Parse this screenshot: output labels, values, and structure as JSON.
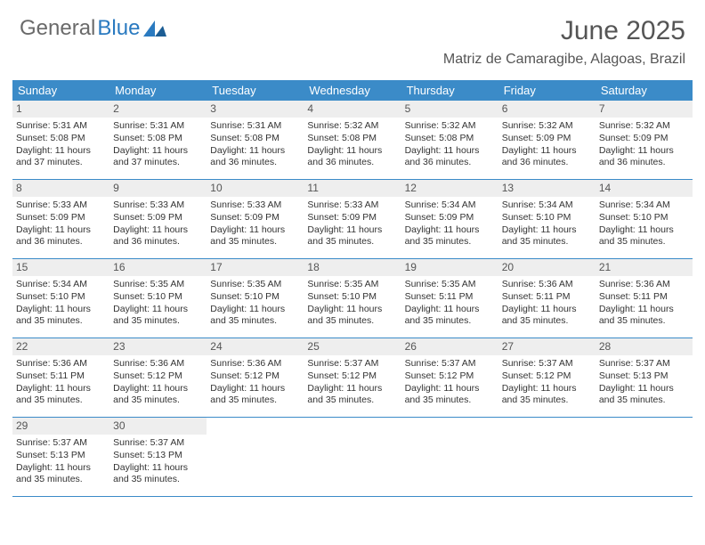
{
  "logo": {
    "text1": "General",
    "text2": "Blue"
  },
  "title": "June 2025",
  "location": "Matriz de Camaragibe, Alagoas, Brazil",
  "colors": {
    "header_bg": "#3b8bc8",
    "header_text": "#ffffff",
    "daynum_bg": "#eeeeee",
    "border": "#3b8bc8",
    "logo_gray": "#6a6a6a",
    "logo_blue": "#2a7ac0",
    "title_color": "#555555"
  },
  "day_names": [
    "Sunday",
    "Monday",
    "Tuesday",
    "Wednesday",
    "Thursday",
    "Friday",
    "Saturday"
  ],
  "weeks": [
    [
      {
        "n": "1",
        "sr": "Sunrise: 5:31 AM",
        "ss": "Sunset: 5:08 PM",
        "dl": "Daylight: 11 hours and 37 minutes."
      },
      {
        "n": "2",
        "sr": "Sunrise: 5:31 AM",
        "ss": "Sunset: 5:08 PM",
        "dl": "Daylight: 11 hours and 37 minutes."
      },
      {
        "n": "3",
        "sr": "Sunrise: 5:31 AM",
        "ss": "Sunset: 5:08 PM",
        "dl": "Daylight: 11 hours and 36 minutes."
      },
      {
        "n": "4",
        "sr": "Sunrise: 5:32 AM",
        "ss": "Sunset: 5:08 PM",
        "dl": "Daylight: 11 hours and 36 minutes."
      },
      {
        "n": "5",
        "sr": "Sunrise: 5:32 AM",
        "ss": "Sunset: 5:08 PM",
        "dl": "Daylight: 11 hours and 36 minutes."
      },
      {
        "n": "6",
        "sr": "Sunrise: 5:32 AM",
        "ss": "Sunset: 5:09 PM",
        "dl": "Daylight: 11 hours and 36 minutes."
      },
      {
        "n": "7",
        "sr": "Sunrise: 5:32 AM",
        "ss": "Sunset: 5:09 PM",
        "dl": "Daylight: 11 hours and 36 minutes."
      }
    ],
    [
      {
        "n": "8",
        "sr": "Sunrise: 5:33 AM",
        "ss": "Sunset: 5:09 PM",
        "dl": "Daylight: 11 hours and 36 minutes."
      },
      {
        "n": "9",
        "sr": "Sunrise: 5:33 AM",
        "ss": "Sunset: 5:09 PM",
        "dl": "Daylight: 11 hours and 36 minutes."
      },
      {
        "n": "10",
        "sr": "Sunrise: 5:33 AM",
        "ss": "Sunset: 5:09 PM",
        "dl": "Daylight: 11 hours and 35 minutes."
      },
      {
        "n": "11",
        "sr": "Sunrise: 5:33 AM",
        "ss": "Sunset: 5:09 PM",
        "dl": "Daylight: 11 hours and 35 minutes."
      },
      {
        "n": "12",
        "sr": "Sunrise: 5:34 AM",
        "ss": "Sunset: 5:09 PM",
        "dl": "Daylight: 11 hours and 35 minutes."
      },
      {
        "n": "13",
        "sr": "Sunrise: 5:34 AM",
        "ss": "Sunset: 5:10 PM",
        "dl": "Daylight: 11 hours and 35 minutes."
      },
      {
        "n": "14",
        "sr": "Sunrise: 5:34 AM",
        "ss": "Sunset: 5:10 PM",
        "dl": "Daylight: 11 hours and 35 minutes."
      }
    ],
    [
      {
        "n": "15",
        "sr": "Sunrise: 5:34 AM",
        "ss": "Sunset: 5:10 PM",
        "dl": "Daylight: 11 hours and 35 minutes."
      },
      {
        "n": "16",
        "sr": "Sunrise: 5:35 AM",
        "ss": "Sunset: 5:10 PM",
        "dl": "Daylight: 11 hours and 35 minutes."
      },
      {
        "n": "17",
        "sr": "Sunrise: 5:35 AM",
        "ss": "Sunset: 5:10 PM",
        "dl": "Daylight: 11 hours and 35 minutes."
      },
      {
        "n": "18",
        "sr": "Sunrise: 5:35 AM",
        "ss": "Sunset: 5:10 PM",
        "dl": "Daylight: 11 hours and 35 minutes."
      },
      {
        "n": "19",
        "sr": "Sunrise: 5:35 AM",
        "ss": "Sunset: 5:11 PM",
        "dl": "Daylight: 11 hours and 35 minutes."
      },
      {
        "n": "20",
        "sr": "Sunrise: 5:36 AM",
        "ss": "Sunset: 5:11 PM",
        "dl": "Daylight: 11 hours and 35 minutes."
      },
      {
        "n": "21",
        "sr": "Sunrise: 5:36 AM",
        "ss": "Sunset: 5:11 PM",
        "dl": "Daylight: 11 hours and 35 minutes."
      }
    ],
    [
      {
        "n": "22",
        "sr": "Sunrise: 5:36 AM",
        "ss": "Sunset: 5:11 PM",
        "dl": "Daylight: 11 hours and 35 minutes."
      },
      {
        "n": "23",
        "sr": "Sunrise: 5:36 AM",
        "ss": "Sunset: 5:12 PM",
        "dl": "Daylight: 11 hours and 35 minutes."
      },
      {
        "n": "24",
        "sr": "Sunrise: 5:36 AM",
        "ss": "Sunset: 5:12 PM",
        "dl": "Daylight: 11 hours and 35 minutes."
      },
      {
        "n": "25",
        "sr": "Sunrise: 5:37 AM",
        "ss": "Sunset: 5:12 PM",
        "dl": "Daylight: 11 hours and 35 minutes."
      },
      {
        "n": "26",
        "sr": "Sunrise: 5:37 AM",
        "ss": "Sunset: 5:12 PM",
        "dl": "Daylight: 11 hours and 35 minutes."
      },
      {
        "n": "27",
        "sr": "Sunrise: 5:37 AM",
        "ss": "Sunset: 5:12 PM",
        "dl": "Daylight: 11 hours and 35 minutes."
      },
      {
        "n": "28",
        "sr": "Sunrise: 5:37 AM",
        "ss": "Sunset: 5:13 PM",
        "dl": "Daylight: 11 hours and 35 minutes."
      }
    ],
    [
      {
        "n": "29",
        "sr": "Sunrise: 5:37 AM",
        "ss": "Sunset: 5:13 PM",
        "dl": "Daylight: 11 hours and 35 minutes."
      },
      {
        "n": "30",
        "sr": "Sunrise: 5:37 AM",
        "ss": "Sunset: 5:13 PM",
        "dl": "Daylight: 11 hours and 35 minutes."
      },
      null,
      null,
      null,
      null,
      null
    ]
  ]
}
